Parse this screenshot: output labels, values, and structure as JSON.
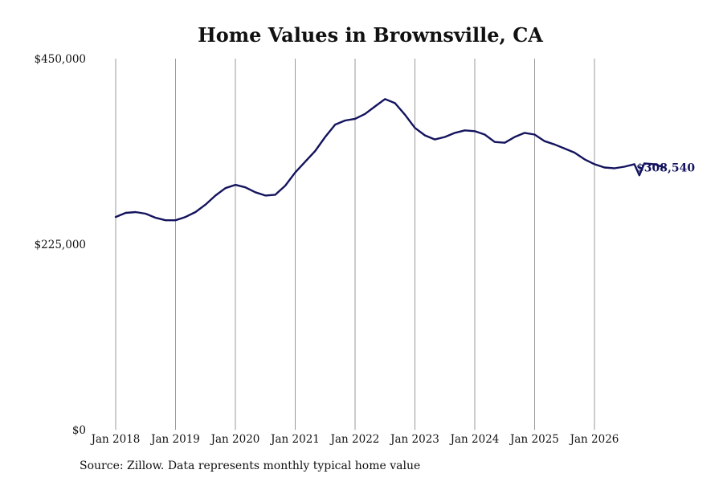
{
  "chart_data": {
    "type": "line",
    "title": "Home Values in Brownsville, CA",
    "xlabel": "",
    "ylabel": "",
    "ylim": [
      0,
      450000
    ],
    "y_ticks": [
      {
        "value": 0,
        "label": "$0"
      },
      {
        "value": 225000,
        "label": "$225,000"
      },
      {
        "value": 450000,
        "label": "$450,000"
      }
    ],
    "x_ticks": [
      "Jan 2018",
      "Jan 2019",
      "Jan 2020",
      "Jan 2021",
      "Jan 2022",
      "Jan 2023",
      "Jan 2024",
      "Jan 2025",
      "Jan 2026"
    ],
    "grid": "vertical",
    "line_color": "#14145e",
    "series": [
      {
        "name": "",
        "points": [
          [
            "2018-01",
            258000
          ],
          [
            "2018-03",
            263000
          ],
          [
            "2018-05",
            264000
          ],
          [
            "2018-07",
            262000
          ],
          [
            "2018-09",
            257000
          ],
          [
            "2018-11",
            254000
          ],
          [
            "2019-01",
            254000
          ],
          [
            "2019-03",
            258000
          ],
          [
            "2019-05",
            264000
          ],
          [
            "2019-07",
            273000
          ],
          [
            "2019-09",
            284000
          ],
          [
            "2019-11",
            293000
          ],
          [
            "2020-01",
            297000
          ],
          [
            "2020-03",
            294000
          ],
          [
            "2020-05",
            288000
          ],
          [
            "2020-07",
            284000
          ],
          [
            "2020-09",
            285000
          ],
          [
            "2020-11",
            296000
          ],
          [
            "2021-01",
            312000
          ],
          [
            "2021-03",
            325000
          ],
          [
            "2021-05",
            338000
          ],
          [
            "2021-07",
            355000
          ],
          [
            "2021-09",
            370000
          ],
          [
            "2021-11",
            375000
          ],
          [
            "2022-01",
            377000
          ],
          [
            "2022-03",
            383000
          ],
          [
            "2022-05",
            392000
          ],
          [
            "2022-07",
            401000
          ],
          [
            "2022-09",
            396000
          ],
          [
            "2022-11",
            382000
          ],
          [
            "2023-01",
            366000
          ],
          [
            "2023-03",
            357000
          ],
          [
            "2023-05",
            352000
          ],
          [
            "2023-07",
            355000
          ],
          [
            "2023-09",
            360000
          ],
          [
            "2023-11",
            363000
          ],
          [
            "2024-01",
            362000
          ],
          [
            "2024-03",
            358000
          ],
          [
            "2024-05",
            349000
          ],
          [
            "2024-07",
            348000
          ],
          [
            "2024-09",
            355000
          ],
          [
            "2024-11",
            360000
          ],
          [
            "2025-01",
            358000
          ],
          [
            "2025-03",
            350000
          ],
          [
            "2025-05",
            346000
          ],
          [
            "2025-07",
            341000
          ],
          [
            "2025-09",
            336000
          ],
          [
            "2025-11",
            328000
          ],
          [
            "2026-01",
            322000
          ],
          [
            "2026-03",
            318000
          ],
          [
            "2026-05",
            317000
          ],
          [
            "2026-07",
            319000
          ],
          [
            "2026-09",
            322000
          ],
          [
            "2026-11",
            323000
          ],
          [
            "2027-01",
            322000
          ],
          [
            "2027-03",
            318000
          ],
          [
            "2026-10",
            308540
          ]
        ]
      }
    ],
    "end_value_label": "$308,540"
  },
  "footer": {
    "source": "Source: Zillow. Data represents monthly typical home value"
  }
}
